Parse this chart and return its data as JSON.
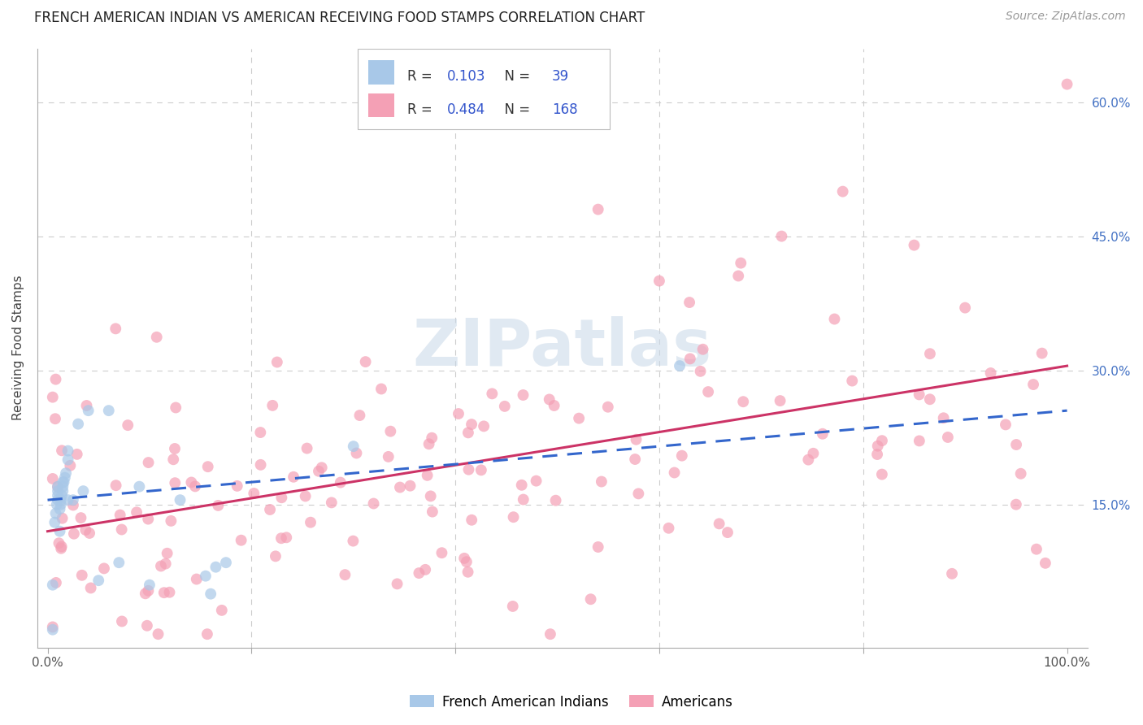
{
  "title": "FRENCH AMERICAN INDIAN VS AMERICAN RECEIVING FOOD STAMPS CORRELATION CHART",
  "source": "Source: ZipAtlas.com",
  "ylabel": "Receiving Food Stamps",
  "blue_R": 0.103,
  "blue_N": 39,
  "pink_R": 0.484,
  "pink_N": 168,
  "blue_color": "#a8c8e8",
  "pink_color": "#f4a0b5",
  "blue_line_color": "#3366cc",
  "pink_line_color": "#cc3366",
  "legend_label_blue": "French American Indians",
  "legend_label_pink": "Americans",
  "watermark": "ZIPatlas",
  "title_fontsize": 12,
  "source_fontsize": 10,
  "legend_text_color": "#3355cc",
  "legend_label_color": "#333333",
  "grid_color": "#cccccc",
  "right_tick_color": "#4472c4"
}
